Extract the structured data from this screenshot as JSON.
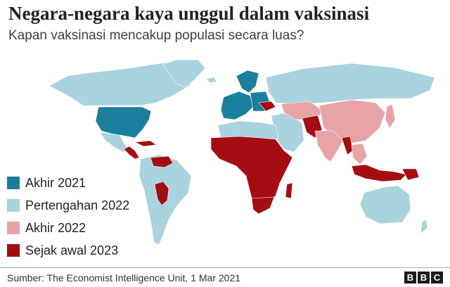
{
  "header": {
    "title": "Negara-negara kaya unggul dalam vaksinasi",
    "subtitle": "Kapan vaksinasi mencakup populasi secara luas?"
  },
  "colors": {
    "akhir_2021": "#1a7f9c",
    "pertengahan_2022": "#a9d3df",
    "akhir_2022": "#e8a3a6",
    "sejak_awal_2023": "#a50d12",
    "background": "#ffffff"
  },
  "legend": [
    {
      "label": "Akhir 2021",
      "color": "#1a7f9c"
    },
    {
      "label": "Pertengahan 2022",
      "color": "#a9d3df"
    },
    {
      "label": "Akhir 2022",
      "color": "#e8a3a6"
    },
    {
      "label": "Sejak awal 2023",
      "color": "#a50d12"
    }
  ],
  "map": {
    "regions": [
      {
        "name": "North America north",
        "category": "pertengahan_2022"
      },
      {
        "name": "Greenland",
        "category": "pertengahan_2022"
      },
      {
        "name": "Iceland",
        "category": "pertengahan_2022"
      },
      {
        "name": "United States",
        "category": "akhir_2021"
      },
      {
        "name": "Mexico",
        "category": "pertengahan_2022"
      },
      {
        "name": "Central America",
        "category": "sejak_awal_2023"
      },
      {
        "name": "Caribbean",
        "category": "sejak_awal_2023"
      },
      {
        "name": "Venezuela",
        "category": "sejak_awal_2023"
      },
      {
        "name": "South America",
        "category": "pertengahan_2022"
      },
      {
        "name": "Bolivia",
        "category": "sejak_awal_2023"
      },
      {
        "name": "Western Europe",
        "category": "akhir_2021"
      },
      {
        "name": "Scandinavia",
        "category": "akhir_2021"
      },
      {
        "name": "Eastern Europe",
        "category": "akhir_2021"
      },
      {
        "name": "Ukraine",
        "category": "sejak_awal_2023"
      },
      {
        "name": "Russia",
        "category": "pertengahan_2022"
      },
      {
        "name": "Middle East",
        "category": "pertengahan_2022"
      },
      {
        "name": "Central Asia",
        "category": "akhir_2022"
      },
      {
        "name": "Afghanistan / Pakistan",
        "category": "sejak_awal_2023"
      },
      {
        "name": "China",
        "category": "akhir_2022"
      },
      {
        "name": "India",
        "category": "akhir_2022"
      },
      {
        "name": "Myanmar",
        "category": "sejak_awal_2023"
      },
      {
        "name": "Southeast Asia",
        "category": "akhir_2022"
      },
      {
        "name": "Japan",
        "category": "akhir_2022"
      },
      {
        "name": "Indonesia",
        "category": "sejak_awal_2023"
      },
      {
        "name": "Papua New Guinea",
        "category": "sejak_awal_2023"
      },
      {
        "name": "North Africa",
        "category": "pertengahan_2022"
      },
      {
        "name": "Sub-Saharan Africa",
        "category": "sejak_awal_2023"
      },
      {
        "name": "Madagascar",
        "category": "sejak_awal_2023"
      },
      {
        "name": "Southern Africa",
        "category": "sejak_awal_2023"
      },
      {
        "name": "Australia",
        "category": "pertengahan_2022"
      },
      {
        "name": "New Zealand",
        "category": "pertengahan_2022"
      }
    ]
  },
  "footer": {
    "source": "Sumber:  The Economist Intelligence Unit, 1 Mar 2021",
    "brand": [
      "B",
      "B",
      "C"
    ]
  }
}
